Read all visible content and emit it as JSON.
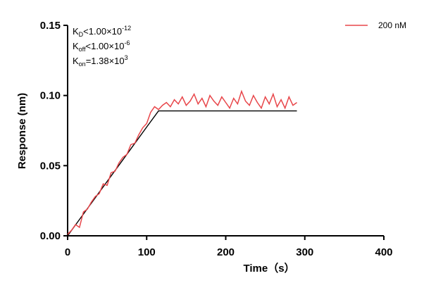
{
  "chart_data": {
    "type": "line",
    "xlabel": "Time（s）",
    "ylabel": "Response (nm)",
    "xlim": [
      0,
      400
    ],
    "xticks": [
      0,
      100,
      200,
      300,
      400
    ],
    "ylim": [
      0,
      0.15
    ],
    "yticks": [
      {
        "value": 0,
        "label": "0.00"
      },
      {
        "value": 0.05,
        "label": "0.05"
      },
      {
        "value": 0.1,
        "label": "0.10"
      },
      {
        "value": 0.15,
        "label": "0.15"
      }
    ],
    "legend": "top-right",
    "annotations": [
      {
        "symbol": "K",
        "subscript": "D",
        "text": "<1.00×10",
        "superscript": "-12"
      },
      {
        "symbol": "K",
        "subscript": "off",
        "text": "<1.00×10",
        "superscript": "-6"
      },
      {
        "symbol": "K",
        "subscript": "on",
        "text": "=1.38×10",
        "superscript": "3"
      }
    ],
    "series": [
      {
        "name": "200 nM",
        "color": "#e8464a",
        "x": [
          0,
          5,
          10,
          15,
          20,
          25,
          30,
          35,
          40,
          45,
          50,
          55,
          60,
          65,
          70,
          75,
          80,
          85,
          90,
          95,
          100,
          105,
          110,
          115,
          120,
          125,
          130,
          135,
          140,
          145,
          150,
          155,
          160,
          165,
          170,
          175,
          180,
          185,
          190,
          195,
          200,
          205,
          210,
          215,
          220,
          225,
          230,
          235,
          240,
          245,
          250,
          255,
          260,
          265,
          270,
          275,
          280,
          285,
          290
        ],
        "values": [
          0.001,
          0.004,
          0.008,
          0.006,
          0.017,
          0.019,
          0.024,
          0.028,
          0.03,
          0.037,
          0.036,
          0.045,
          0.046,
          0.052,
          0.056,
          0.058,
          0.065,
          0.066,
          0.072,
          0.077,
          0.08,
          0.088,
          0.092,
          0.09,
          0.093,
          0.095,
          0.092,
          0.097,
          0.094,
          0.099,
          0.093,
          0.096,
          0.101,
          0.094,
          0.098,
          0.092,
          0.1,
          0.096,
          0.093,
          0.099,
          0.095,
          0.091,
          0.098,
          0.094,
          0.103,
          0.096,
          0.093,
          0.1,
          0.095,
          0.091,
          0.099,
          0.094,
          0.101,
          0.092,
          0.097,
          0.091,
          0.099,
          0.093,
          0.095
        ]
      }
    ],
    "fit_line": {
      "color": "#000000",
      "x": [
        0,
        20,
        40,
        60,
        80,
        100,
        115,
        150,
        200,
        250,
        290
      ],
      "values": [
        0,
        0.0155,
        0.031,
        0.0465,
        0.062,
        0.0775,
        0.089,
        0.089,
        0.089,
        0.089,
        0.089
      ]
    }
  }
}
